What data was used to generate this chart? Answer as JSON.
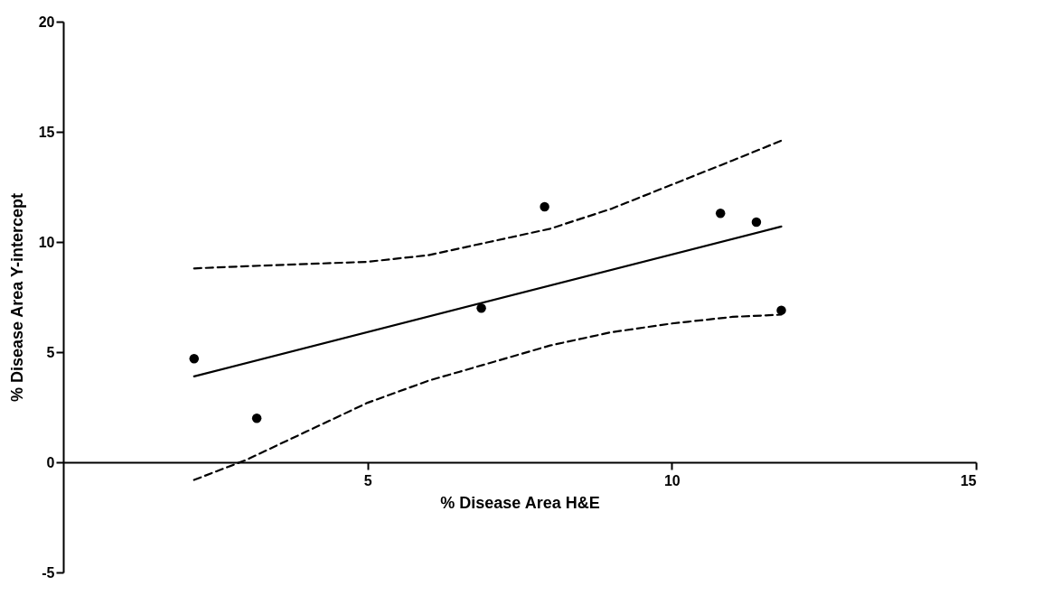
{
  "chart_data": {
    "type": "scatter",
    "xlabel": "% Disease Area H&E",
    "ylabel": "% Disease Area Y-intercept",
    "xlim": [
      0,
      15
    ],
    "xticks": [
      5,
      10,
      15
    ],
    "ylim": [
      -5,
      20
    ],
    "yticks": [
      -5,
      0,
      5,
      10,
      15,
      20
    ],
    "series": [
      {
        "marker": "circle",
        "color": "#000000",
        "x": [
          2.15,
          3.18,
          6.87,
          7.91,
          10.8,
          11.39,
          11.8
        ],
        "values": [
          4.7,
          2.0,
          7.0,
          11.6,
          11.3,
          10.9,
          6.9
        ]
      },
      {
        "type": "line",
        "line_style": "solid",
        "color": "#000000",
        "x": [
          2.15,
          11.8
        ],
        "values": [
          3.9,
          10.7
        ]
      },
      {
        "type": "line",
        "line_style": "dashed",
        "color": "#000000",
        "x": [
          2.15,
          3,
          4,
          5,
          6,
          7,
          8,
          9,
          10,
          11,
          11.8
        ],
        "values": [
          8.8,
          8.9,
          9.0,
          9.1,
          9.4,
          10.0,
          10.6,
          11.5,
          12.6,
          13.7,
          14.6
        ]
      },
      {
        "type": "line",
        "line_style": "dashed",
        "color": "#000000",
        "x": [
          2.15,
          3,
          4,
          5,
          6,
          7,
          8,
          9,
          10,
          11,
          11.8
        ],
        "values": [
          -0.8,
          0.1,
          1.4,
          2.7,
          3.7,
          4.5,
          5.3,
          5.9,
          6.3,
          6.6,
          6.7
        ]
      }
    ]
  }
}
